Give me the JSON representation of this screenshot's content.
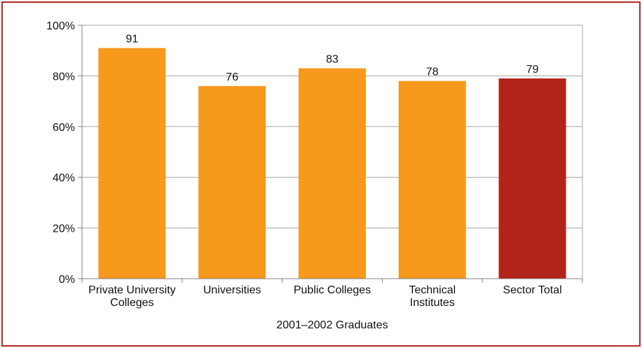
{
  "chart_data": {
    "type": "bar",
    "categories": [
      [
        "Private University",
        "Colleges"
      ],
      [
        "Universities"
      ],
      [
        "Public Colleges"
      ],
      [
        "Technical",
        "Institutes"
      ],
      [
        "Sector Total"
      ]
    ],
    "values": [
      91,
      76,
      83,
      78,
      79
    ],
    "data_labels": [
      "91",
      "76",
      "83",
      "78",
      "79"
    ],
    "xlabel": "2001–2002 Graduates",
    "ylabel": "",
    "ylim": [
      0,
      100
    ],
    "yticks": [
      "0%",
      "20%",
      "40%",
      "60%",
      "80%",
      "100%"
    ],
    "grid": true,
    "colors": {
      "bar": "#f7991c",
      "highlight": "#b22419",
      "border": "#b22a22",
      "grid": "#a6a6a6"
    },
    "highlight_index": 4
  }
}
